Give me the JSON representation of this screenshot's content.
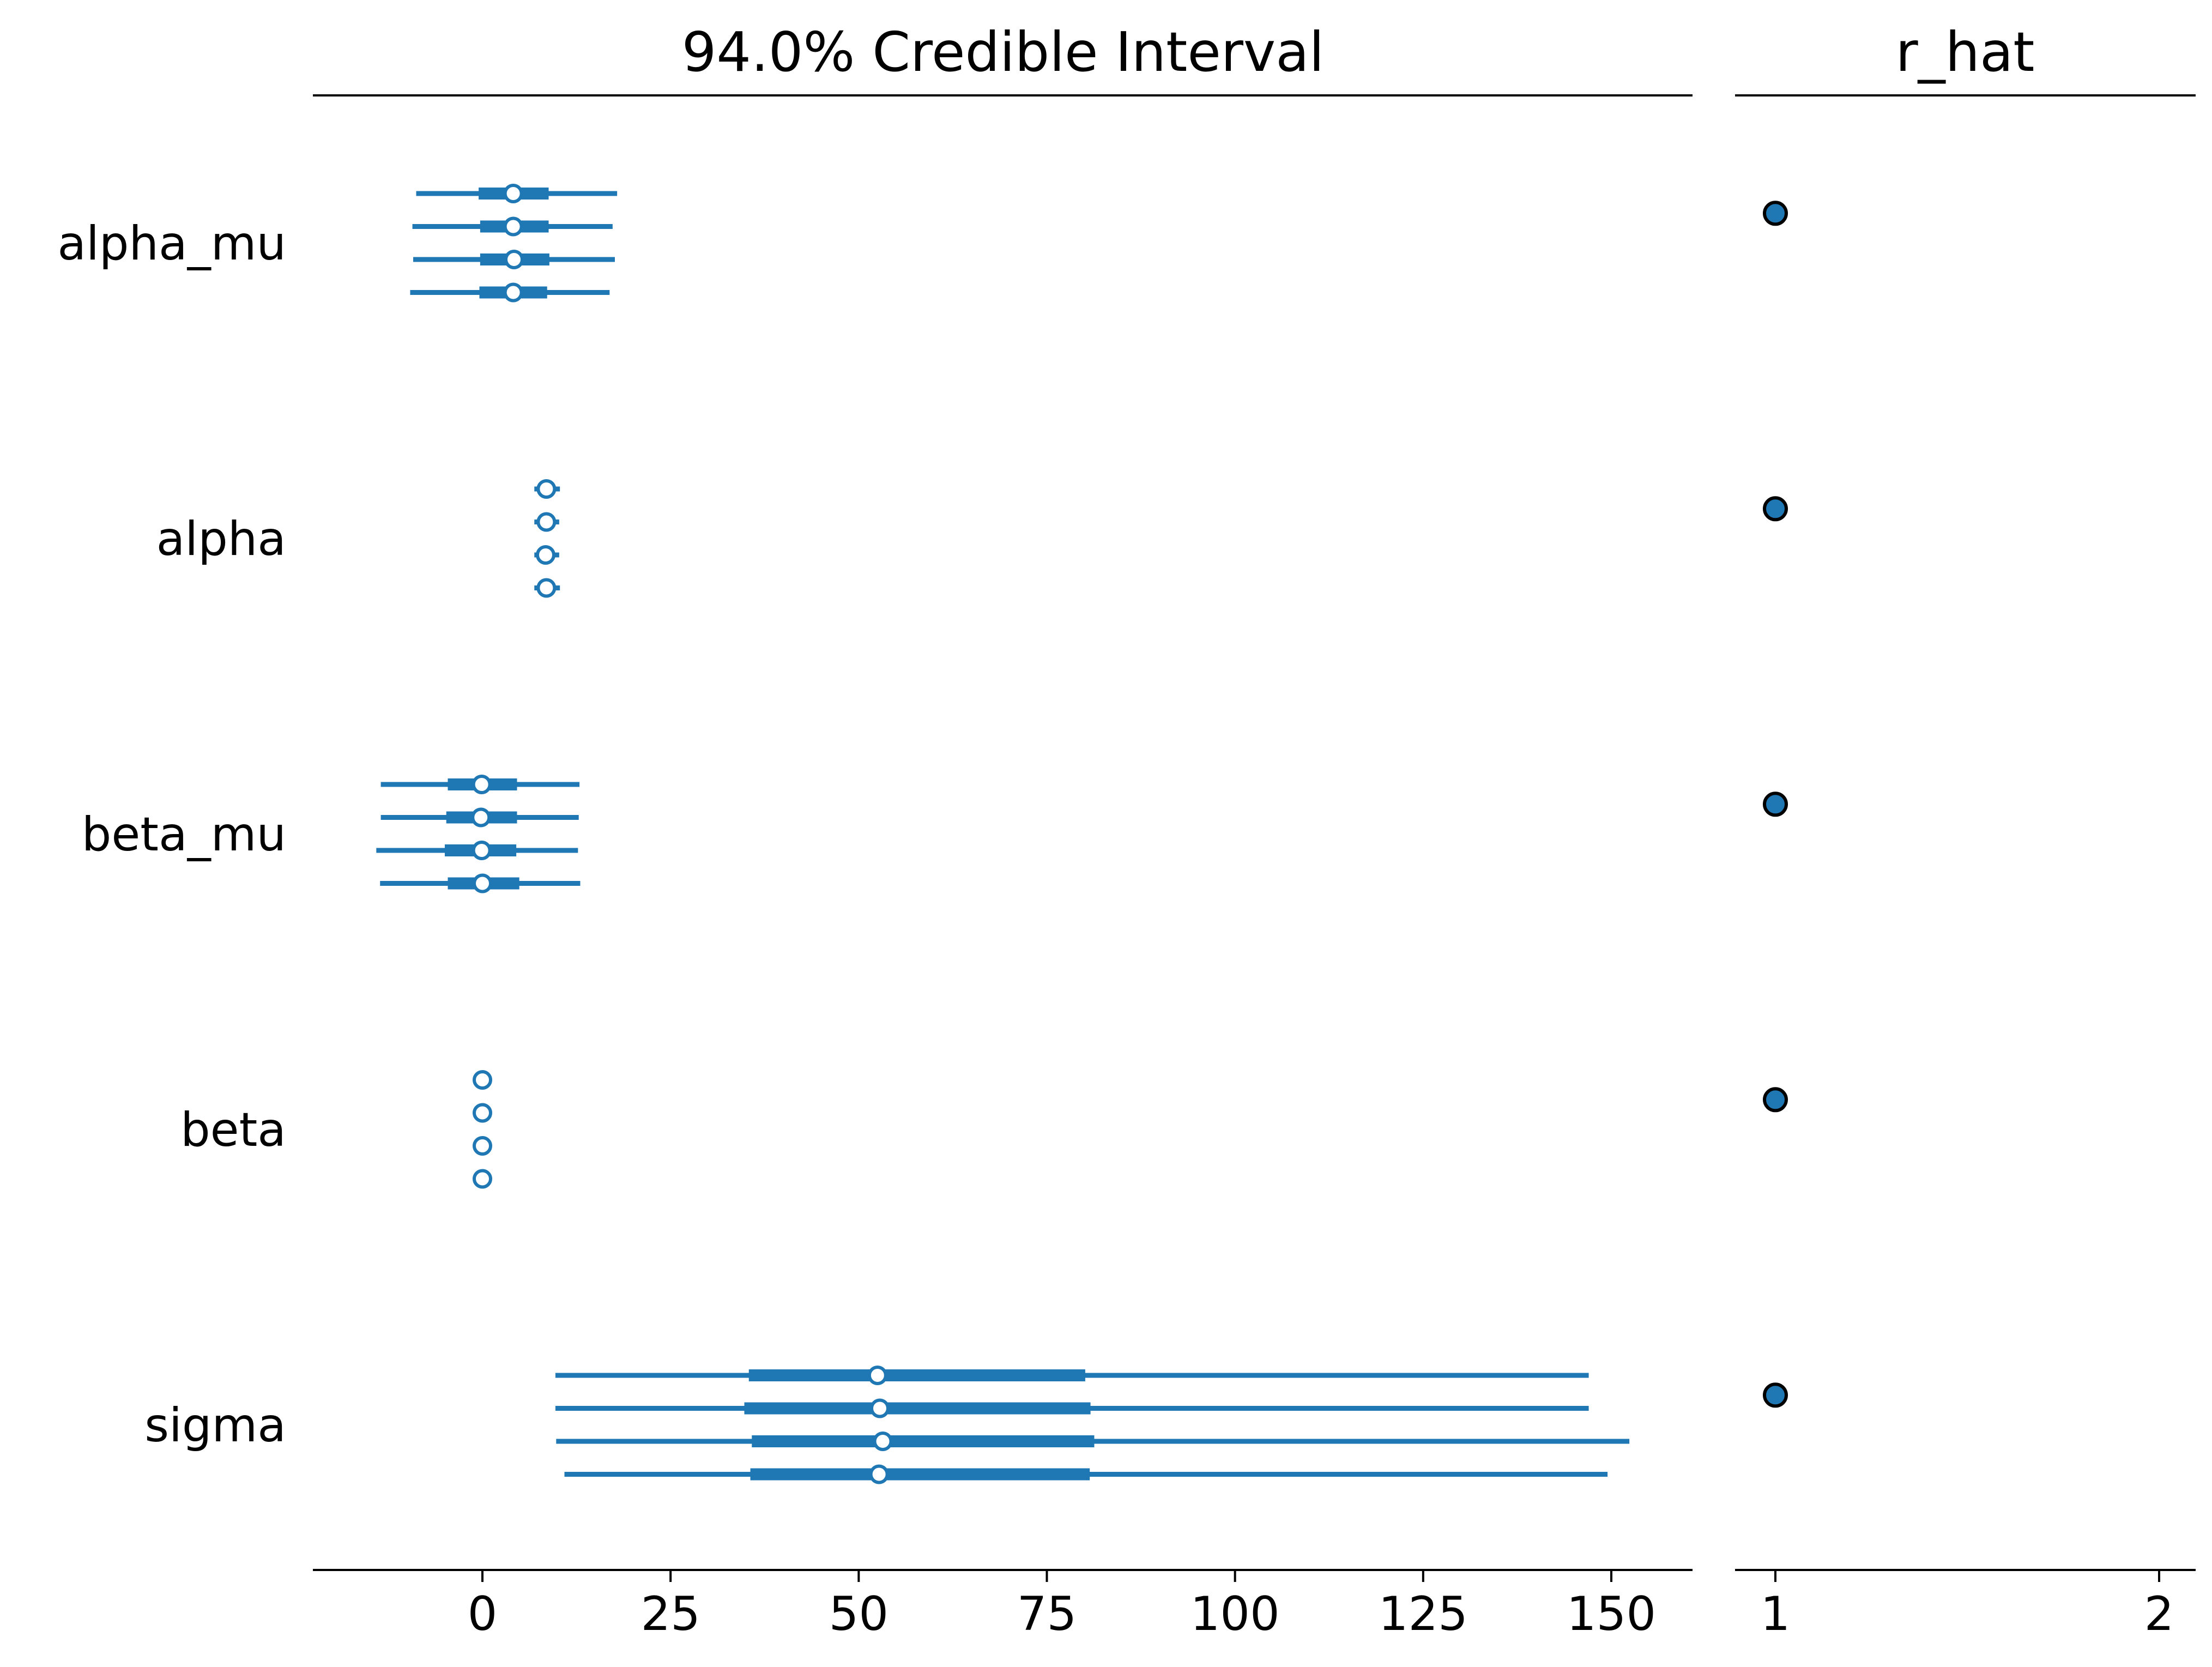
{
  "chart_data": [
    {
      "type": "forest",
      "title": "94.0% Credible Interval",
      "xlabel": "",
      "ylabel": "",
      "xlim": [
        -22.5,
        161.5
      ],
      "xticks": [
        "0",
        "25",
        "50",
        "75",
        "100",
        "125",
        "150"
      ],
      "grid": false,
      "color": "#1f77b4",
      "variables": [
        {
          "name": "alpha_mu",
          "chains": [
            {
              "hdi94": [
                -8.8,
                17.9
              ],
              "hdi50": [
                -0.5,
                8.8
              ],
              "median": 4.1
            },
            {
              "hdi94": [
                -9.3,
                17.3
              ],
              "hdi50": [
                -0.3,
                8.8
              ],
              "median": 4.1
            },
            {
              "hdi94": [
                -9.2,
                17.6
              ],
              "hdi50": [
                -0.3,
                8.9
              ],
              "median": 4.2
            },
            {
              "hdi94": [
                -9.6,
                16.9
              ],
              "hdi50": [
                -0.4,
                8.6
              ],
              "median": 4.1
            }
          ]
        },
        {
          "name": "alpha",
          "chains": [
            {
              "hdi94": [
                6.9,
                10.3
              ],
              "hdi50": [
                7.8,
                9.5
              ],
              "median": 8.5
            },
            {
              "hdi94": [
                6.9,
                10.2
              ],
              "hdi50": [
                7.8,
                9.4
              ],
              "median": 8.5
            },
            {
              "hdi94": [
                6.9,
                10.2
              ],
              "hdi50": [
                7.8,
                9.4
              ],
              "median": 8.4
            },
            {
              "hdi94": [
                6.9,
                10.3
              ],
              "hdi50": [
                7.8,
                9.4
              ],
              "median": 8.5
            }
          ]
        },
        {
          "name": "beta_mu",
          "chains": [
            {
              "hdi94": [
                -13.5,
                12.9
              ],
              "hdi50": [
                -4.6,
                4.6
              ],
              "median": -0.1
            },
            {
              "hdi94": [
                -13.5,
                12.8
              ],
              "hdi50": [
                -4.8,
                4.6
              ],
              "median": -0.2
            },
            {
              "hdi94": [
                -14.1,
                12.7
              ],
              "hdi50": [
                -5.0,
                4.5
              ],
              "median": -0.1
            },
            {
              "hdi94": [
                -13.6,
                13.0
              ],
              "hdi50": [
                -4.6,
                4.9
              ],
              "median": 0.0
            }
          ]
        },
        {
          "name": "beta",
          "chains": [
            {
              "hdi94": [
                -0.2,
                0.2
              ],
              "hdi50": [
                -0.1,
                0.1
              ],
              "median": 0.0
            },
            {
              "hdi94": [
                -0.2,
                0.2
              ],
              "hdi50": [
                -0.1,
                0.1
              ],
              "median": 0.0
            },
            {
              "hdi94": [
                -0.2,
                0.2
              ],
              "hdi50": [
                -0.1,
                0.1
              ],
              "median": 0.0
            },
            {
              "hdi94": [
                -0.2,
                0.2
              ],
              "hdi50": [
                -0.1,
                0.1
              ],
              "median": 0.0
            }
          ]
        },
        {
          "name": "sigma",
          "chains": [
            {
              "hdi94": [
                9.7,
                147.0
              ],
              "hdi50": [
                35.4,
                80.1
              ],
              "median": 52.5
            },
            {
              "hdi94": [
                9.7,
                147.0
              ],
              "hdi50": [
                34.8,
                80.8
              ],
              "median": 52.8
            },
            {
              "hdi94": [
                9.8,
                152.4
              ],
              "hdi50": [
                35.8,
                81.3
              ],
              "median": 53.2
            },
            {
              "hdi94": [
                10.9,
                149.5
              ],
              "hdi50": [
                35.6,
                80.7
              ],
              "median": 52.7
            }
          ]
        }
      ]
    },
    {
      "type": "scatter",
      "title": "r_hat",
      "xlabel": "",
      "ylabel": "",
      "xlim": [
        0.9,
        2.1
      ],
      "xticks": [
        "1",
        "2"
      ],
      "grid": false,
      "color": "#1f77b4",
      "points": [
        {
          "variable": "alpha_mu",
          "value": 1.0
        },
        {
          "variable": "alpha",
          "value": 1.0
        },
        {
          "variable": "beta_mu",
          "value": 1.0
        },
        {
          "variable": "beta",
          "value": 1.0
        },
        {
          "variable": "sigma",
          "value": 1.0
        }
      ]
    }
  ]
}
